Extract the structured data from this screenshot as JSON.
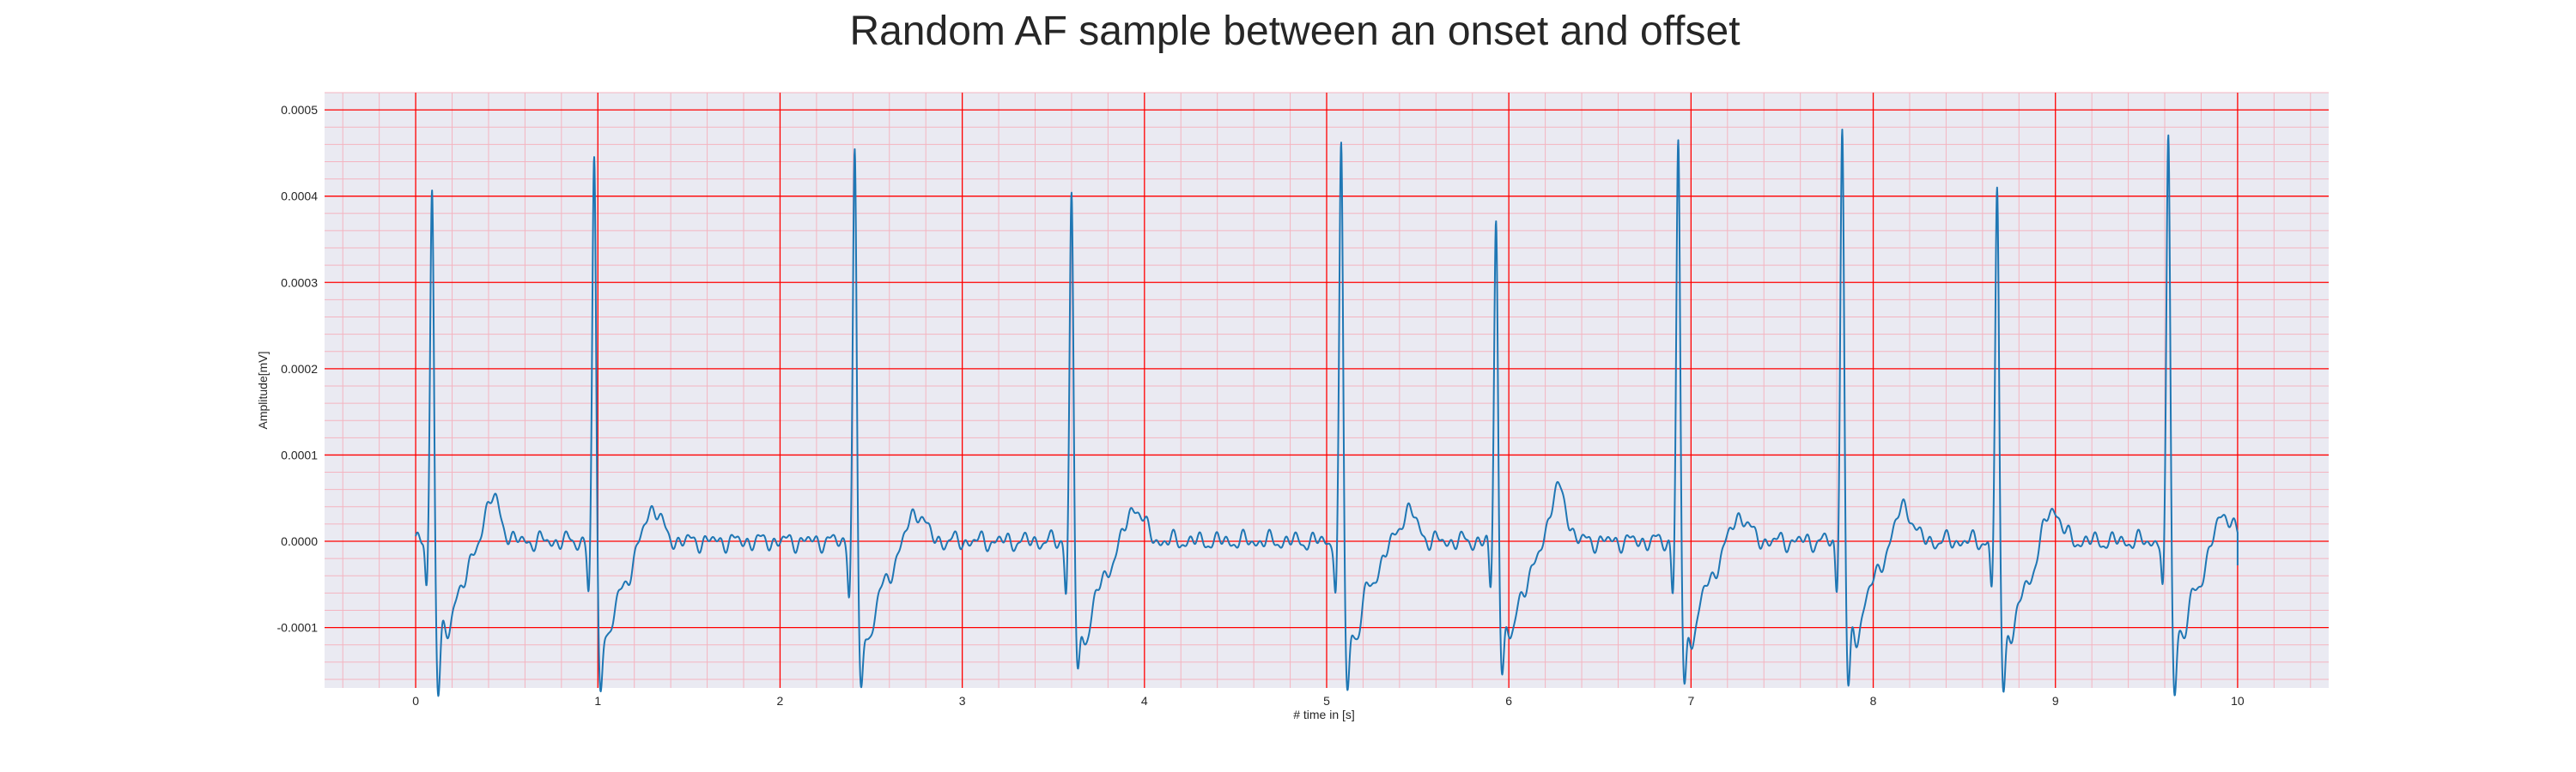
{
  "chart_data": {
    "type": "line",
    "title": "Random AF sample between an onset and offset",
    "xlabel": "# time in [s]",
    "ylabel": "Amplitude[mV]",
    "xlim": [
      -0.5,
      10.5
    ],
    "ylim": [
      -0.00017,
      0.00052
    ],
    "xticks": [
      0,
      1,
      2,
      3,
      4,
      5,
      6,
      7,
      8,
      9,
      10
    ],
    "xtick_labels": [
      "0",
      "1",
      "2",
      "3",
      "4",
      "5",
      "6",
      "7",
      "8",
      "9",
      "10"
    ],
    "yticks": [
      -0.0001,
      0.0,
      0.0001,
      0.0002,
      0.0003,
      0.0004,
      0.0005
    ],
    "ytick_labels": [
      "-0.0001",
      "0.0000",
      "0.0001",
      "0.0002",
      "0.0003",
      "0.0004",
      "0.0005"
    ],
    "grid": true,
    "minor_grid": true,
    "background": "#eaeaf2",
    "grid_major_color": "#ff0000",
    "grid_minor_color": "#f4b4c0",
    "line_color": "#1f77b4",
    "beats": [
      {
        "t": 0.09,
        "r": 0.00042,
        "s": -0.00013,
        "tw": 5e-05,
        "tt": 0.42
      },
      {
        "t": 0.98,
        "r": 0.00045,
        "s": -0.00013,
        "tw": 4e-05,
        "tt": 1.3
      },
      {
        "t": 2.41,
        "r": 0.00046,
        "s": -0.000135,
        "tw": 3.5e-05,
        "tt": 2.75
      },
      {
        "t": 3.6,
        "r": 0.000415,
        "s": -0.00012,
        "tw": 4e-05,
        "tt": 3.95
      },
      {
        "t": 5.08,
        "r": 0.000465,
        "s": -0.000133,
        "tw": 3.5e-05,
        "tt": 5.45
      },
      {
        "t": 5.93,
        "r": 0.000385,
        "s": -0.000115,
        "tw": 6e-05,
        "tt": 6.27
      },
      {
        "t": 6.93,
        "r": 0.00047,
        "s": -0.000133,
        "tw": 3e-05,
        "tt": 7.27
      },
      {
        "t": 7.83,
        "r": 0.00049,
        "s": -0.000135,
        "tw": 4e-05,
        "tt": 8.17
      },
      {
        "t": 8.68,
        "r": 0.000415,
        "s": -0.000128,
        "tw": 4e-05,
        "tt": 8.98
      },
      {
        "t": 9.62,
        "r": 0.00048,
        "s": -0.000133,
        "tw": 3.5e-05,
        "tt": 9.92
      }
    ],
    "x_end": 10.0,
    "y_end": -2.8e-05
  }
}
